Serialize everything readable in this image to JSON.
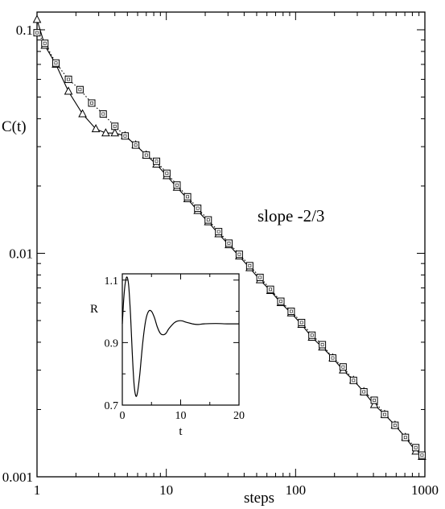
{
  "chart_data": [
    {
      "type": "line",
      "title": "",
      "xlabel": "steps",
      "ylabel": "C(t)",
      "xscale": "log",
      "yscale": "log",
      "xlim": [
        1,
        1000
      ],
      "ylim": [
        0.001,
        0.12
      ],
      "x_ticks": [
        1,
        10,
        100,
        1000
      ],
      "x_tick_labels": [
        "1",
        "10",
        "100",
        "1000"
      ],
      "y_ticks": [
        0.001,
        0.01,
        0.1
      ],
      "y_tick_labels": [
        "0.001",
        "0.01",
        "0.1"
      ],
      "annotation": "slope  -2/3",
      "grid": false,
      "series": [
        {
          "marker": "triangle",
          "line": "solid",
          "color": "#000000",
          "points": [
            [
              1.0,
              0.111
            ],
            [
              1.15,
              0.085
            ],
            [
              1.4,
              0.07
            ],
            [
              1.75,
              0.053
            ],
            [
              2.25,
              0.042
            ],
            [
              2.85,
              0.036
            ],
            [
              3.4,
              0.0345
            ],
            [
              4.0,
              0.0345
            ],
            [
              4.8,
              0.0335
            ],
            [
              5.8,
              0.0305
            ],
            [
              7.0,
              0.0275
            ],
            [
              8.4,
              0.025
            ],
            [
              10.1,
              0.0222
            ],
            [
              12.1,
              0.0197
            ],
            [
              14.6,
              0.0175
            ],
            [
              17.5,
              0.0155
            ],
            [
              21.1,
              0.0138
            ],
            [
              25.4,
              0.0122
            ],
            [
              30.5,
              0.0109
            ],
            [
              36.7,
              0.0097
            ],
            [
              44.2,
              0.0086
            ],
            [
              53.1,
              0.0076
            ],
            [
              63.9,
              0.0068
            ],
            [
              76.9,
              0.006
            ],
            [
              92.5,
              0.0054
            ],
            [
              111.3,
              0.0048
            ],
            [
              133.9,
              0.0042
            ],
            [
              161.1,
              0.0038
            ],
            [
              193.8,
              0.0034
            ],
            [
              233.1,
              0.003
            ],
            [
              280.5,
              0.0027
            ],
            [
              337.4,
              0.0024
            ],
            [
              405.9,
              0.0021
            ],
            [
              488.4,
              0.0019
            ],
            [
              587.5,
              0.0017
            ],
            [
              706.8,
              0.0015
            ],
            [
              850.3,
              0.0013
            ],
            [
              950,
              0.00123
            ]
          ]
        },
        {
          "marker": "square",
          "line": "dotted",
          "color": "#000000",
          "points": [
            [
              1.0,
              0.097
            ],
            [
              1.15,
              0.087
            ],
            [
              1.4,
              0.071
            ],
            [
              1.75,
              0.06
            ],
            [
              2.15,
              0.054
            ],
            [
              2.65,
              0.047
            ],
            [
              3.25,
              0.042
            ],
            [
              4.0,
              0.037
            ],
            [
              4.8,
              0.0335
            ],
            [
              5.8,
              0.0305
            ],
            [
              7.0,
              0.0275
            ],
            [
              8.4,
              0.0258
            ],
            [
              10.1,
              0.0228
            ],
            [
              12.1,
              0.0202
            ],
            [
              14.6,
              0.0179
            ],
            [
              17.5,
              0.0159
            ],
            [
              21.1,
              0.0141
            ],
            [
              25.4,
              0.0125
            ],
            [
              30.5,
              0.0111
            ],
            [
              36.7,
              0.0099
            ],
            [
              44.2,
              0.0088
            ],
            [
              53.1,
              0.0078
            ],
            [
              63.9,
              0.0069
            ],
            [
              76.9,
              0.0061
            ],
            [
              92.5,
              0.0055
            ],
            [
              111.3,
              0.0049
            ],
            [
              133.9,
              0.0043
            ],
            [
              161.1,
              0.0039
            ],
            [
              193.8,
              0.0034
            ],
            [
              233.1,
              0.0031
            ],
            [
              280.5,
              0.0027
            ],
            [
              337.4,
              0.0024
            ],
            [
              405.9,
              0.0022
            ],
            [
              488.4,
              0.0019
            ],
            [
              587.5,
              0.0017
            ],
            [
              706.8,
              0.0015
            ],
            [
              850.3,
              0.00135
            ],
            [
              950,
              0.00125
            ]
          ]
        }
      ]
    },
    {
      "type": "line",
      "title": "",
      "xlabel": "t",
      "ylabel": "R",
      "xlim": [
        0,
        20
      ],
      "ylim": [
        0.7,
        1.12
      ],
      "x_ticks": [
        0,
        10,
        20
      ],
      "x_tick_labels": [
        "0",
        "10",
        "20"
      ],
      "y_ticks": [
        0.7,
        0.9,
        1.1
      ],
      "y_tick_labels": [
        "0.7",
        "0.9",
        "1.1"
      ],
      "grid": false,
      "series": [
        {
          "line": "solid",
          "color": "#000000",
          "points": [
            [
              0,
              0.96
            ],
            [
              0.25,
              1.04
            ],
            [
              0.5,
              1.09
            ],
            [
              0.8,
              1.11
            ],
            [
              1.1,
              1.08
            ],
            [
              1.4,
              0.99
            ],
            [
              1.7,
              0.87
            ],
            [
              2.0,
              0.77
            ],
            [
              2.3,
              0.73
            ],
            [
              2.6,
              0.74
            ],
            [
              3.0,
              0.8
            ],
            [
              3.5,
              0.9
            ],
            [
              4.0,
              0.97
            ],
            [
              4.5,
              1.0
            ],
            [
              5.0,
              1.0
            ],
            [
              5.5,
              0.98
            ],
            [
              6.0,
              0.95
            ],
            [
              6.5,
              0.93
            ],
            [
              7.0,
              0.925
            ],
            [
              7.5,
              0.93
            ],
            [
              8.0,
              0.945
            ],
            [
              9.0,
              0.965
            ],
            [
              10.0,
              0.97
            ],
            [
              11.0,
              0.965
            ],
            [
              12.0,
              0.96
            ],
            [
              13.0,
              0.958
            ],
            [
              14.0,
              0.96
            ],
            [
              16.0,
              0.961
            ],
            [
              18.0,
              0.96
            ],
            [
              20.0,
              0.96
            ]
          ]
        }
      ]
    }
  ]
}
